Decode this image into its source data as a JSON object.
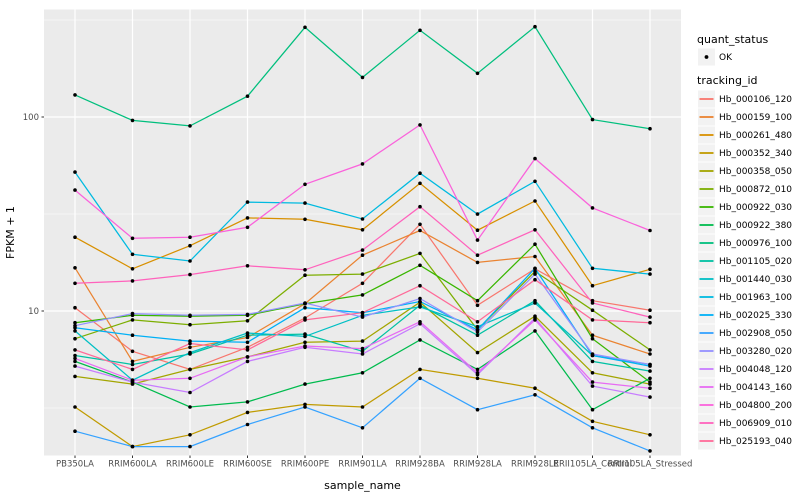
{
  "figure": {
    "background": "#FFFFFF",
    "panel_background": "#EBEBEB",
    "grid_color": "#FFFFFF",
    "point_color": "#000000",
    "axis_text_color": "#4D4D4D",
    "tick_color": "#333333"
  },
  "axes": {
    "x_title": "sample_name",
    "y_title": "FPKM + 1",
    "y_tick_labels": [
      "100",
      "10"
    ]
  },
  "legend": {
    "quant_status_title": "quant_status",
    "quant_status_items": [
      {
        "label": "OK",
        "symbol": "point-icon",
        "color": "#000000"
      }
    ],
    "tracking_id_title": "tracking_id"
  },
  "chart_data": {
    "type": "line",
    "title": "",
    "xlabel": "sample_name",
    "ylabel": "FPKM + 1",
    "x_categories": [
      "PB350LA",
      "RRIM600LA",
      "RRIM600LE",
      "RRIM600SE",
      "RRIM600PE",
      "RRIM901LA",
      "RRIM928BA",
      "RRIM928LA",
      "RRIM928LE",
      "RRII105LA_Control",
      "RRII105LA_Stressed"
    ],
    "y_scale": "log10",
    "ylim": [
      1.7,
      360
    ],
    "y_major_breaks": [
      10,
      100
    ],
    "y_minor_breaks": [
      3.1623,
      31.623,
      316.23
    ],
    "grid": true,
    "legend_position": "right",
    "points": "black markers at every vertex (quant_status = OK)",
    "series": [
      {
        "name": "Hb_000106_120",
        "color": "#F8766D",
        "values": [
          10.4,
          6.2,
          5.0,
          6.5,
          9.2,
          13.9,
          28.0,
          10.7,
          16.5,
          11.3,
          10.1
        ]
      },
      {
        "name": "Hb_000159_100",
        "color": "#EA8331",
        "values": [
          16.7,
          5.5,
          6.5,
          7.3,
          10.9,
          19.4,
          26.0,
          17.8,
          19.1,
          7.5,
          6.0
        ]
      },
      {
        "name": "Hb_000261_480",
        "color": "#D89000",
        "values": [
          24.0,
          16.5,
          21.7,
          30.2,
          29.7,
          26.2,
          45.5,
          26.1,
          36.9,
          13.5,
          16.4
        ]
      },
      {
        "name": "Hb_000352_340",
        "color": "#C09B00",
        "values": [
          3.2,
          2.0,
          2.3,
          3.0,
          3.3,
          3.2,
          5.0,
          4.5,
          4.0,
          2.7,
          2.3
        ]
      },
      {
        "name": "Hb_000358_050",
        "color": "#A3A500",
        "values": [
          4.6,
          4.2,
          5.0,
          5.8,
          6.9,
          7.0,
          11.1,
          6.1,
          9.4,
          4.8,
          4.2
        ]
      },
      {
        "name": "Hb_000872_010",
        "color": "#7CAE00",
        "values": [
          7.2,
          9.0,
          8.5,
          8.9,
          15.3,
          15.5,
          19.8,
          8.0,
          16.0,
          10.1,
          6.3
        ]
      },
      {
        "name": "Hb_000922_030",
        "color": "#39B600",
        "values": [
          8.7,
          9.5,
          9.4,
          9.5,
          10.9,
          12.1,
          17.2,
          11.3,
          22.1,
          7.2,
          4.3
        ]
      },
      {
        "name": "Hb_000922_380",
        "color": "#00BB4E",
        "values": [
          5.5,
          4.3,
          3.2,
          3.4,
          4.2,
          4.8,
          7.1,
          5.0,
          7.9,
          3.1,
          4.5
        ]
      },
      {
        "name": "Hb_000976_100",
        "color": "#00BF7D",
        "values": [
          130,
          96,
          90,
          128,
          290,
          160,
          280,
          168,
          292,
          97,
          87
        ]
      },
      {
        "name": "Hb_001105_020",
        "color": "#00C1A3",
        "values": [
          5.9,
          5.3,
          6.0,
          7.5,
          7.6,
          6.2,
          10.7,
          7.5,
          11.3,
          5.5,
          4.9
        ]
      },
      {
        "name": "Hb_001440_030",
        "color": "#00BFC4",
        "values": [
          7.9,
          4.4,
          6.1,
          7.7,
          7.4,
          9.5,
          10.5,
          8.3,
          11.0,
          5.9,
          5.3
        ]
      },
      {
        "name": "Hb_001963_100",
        "color": "#00BAE0",
        "values": [
          52,
          19.6,
          18.1,
          36.4,
          36.0,
          29.8,
          51.3,
          31.6,
          46.6,
          16.6,
          15.5
        ]
      },
      {
        "name": "Hb_002025_330",
        "color": "#00B0F6",
        "values": [
          8.2,
          7.5,
          7.0,
          6.9,
          10.4,
          9.8,
          11.2,
          8.0,
          16.6,
          5.9,
          5.2
        ]
      },
      {
        "name": "Hb_002908_050",
        "color": "#35A2FF",
        "values": [
          2.4,
          2.0,
          2.0,
          2.6,
          3.2,
          2.5,
          4.5,
          3.1,
          3.7,
          2.5,
          1.9
        ]
      },
      {
        "name": "Hb_003280_020",
        "color": "#9590FF",
        "values": [
          8.4,
          9.7,
          9.5,
          9.6,
          11.0,
          9.3,
          11.6,
          7.8,
          15.5,
          6.0,
          5.3
        ]
      },
      {
        "name": "Hb_004048_120",
        "color": "#C77CFF",
        "values": [
          5.2,
          4.3,
          3.8,
          5.5,
          6.5,
          6.0,
          8.6,
          4.7,
          9.2,
          4.1,
          3.6
        ]
      },
      {
        "name": "Hb_004143_160",
        "color": "#E76BF3",
        "values": [
          5.7,
          4.4,
          4.5,
          5.8,
          6.6,
          6.4,
          8.8,
          4.8,
          9.0,
          4.3,
          4.0
        ]
      },
      {
        "name": "Hb_004800_200",
        "color": "#FA62DB",
        "values": [
          42,
          23.7,
          24.0,
          27.0,
          45.0,
          57.3,
          91.0,
          23.2,
          61.0,
          34.0,
          26.0
        ]
      },
      {
        "name": "Hb_006909_010",
        "color": "#FF62BC",
        "values": [
          13.9,
          14.3,
          15.4,
          17.1,
          16.3,
          20.6,
          34.5,
          19.4,
          26.2,
          11.0,
          9.3
        ]
      },
      {
        "name": "Hb_025193_040",
        "color": "#FF6A98",
        "values": [
          6.3,
          5.0,
          6.8,
          6.3,
          9.0,
          9.8,
          13.5,
          8.8,
          14.5,
          9.0,
          8.7
        ]
      }
    ]
  }
}
